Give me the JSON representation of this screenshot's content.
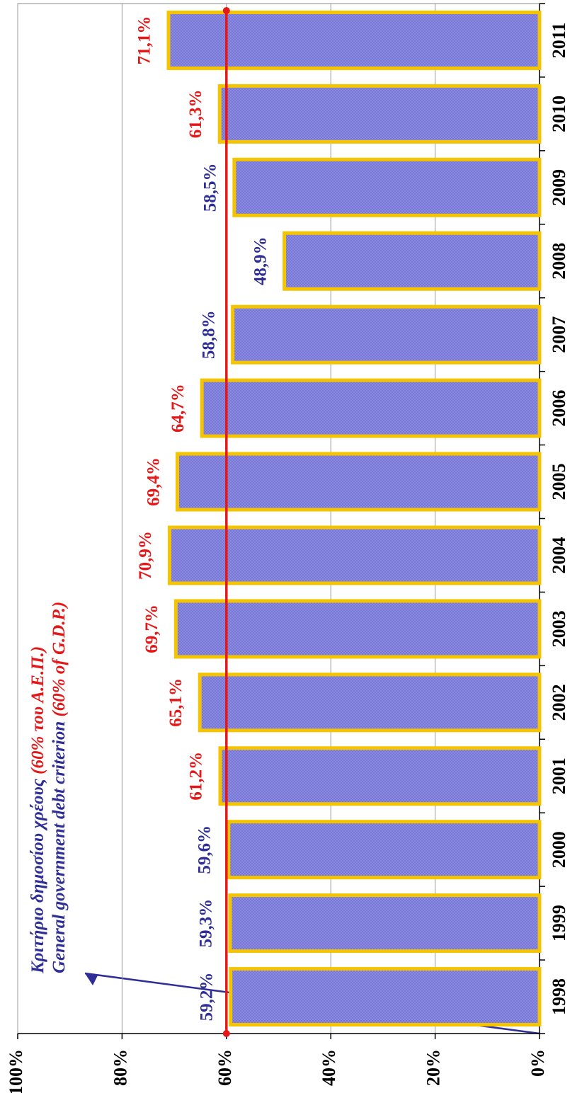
{
  "chart_data": {
    "type": "bar",
    "categories": [
      "1998",
      "1999",
      "2000",
      "2001",
      "2002",
      "2003",
      "2004",
      "2005",
      "2006",
      "2007",
      "2008",
      "2009",
      "2010",
      "2011"
    ],
    "values": [
      59.2,
      59.3,
      59.6,
      61.2,
      65.1,
      69.7,
      70.9,
      69.4,
      64.7,
      58.8,
      48.9,
      58.5,
      61.3,
      71.1
    ],
    "value_labels": [
      "59,2%",
      "59,3%",
      "59,6%",
      "61,2%",
      "65,1%",
      "69,7%",
      "70,9%",
      "69,4%",
      "64,7%",
      "58,8%",
      "48,9%",
      "58,5%",
      "61,3%",
      "71,1%"
    ],
    "color": "#8e8ee6",
    "border_color": "#f5c400",
    "threshold": 60,
    "threshold_color": "#e41818",
    "label_color_below": "#2e2e96",
    "annotation": [
      [
        {
          "text": "Κριτήριο δημοσίου χρέους ",
          "color": "#2e2e96"
        },
        {
          "text": "(60% του Α.Ε.Π.)",
          "color": "#e41818"
        }
      ],
      [
        {
          "text": "General government debt criterion ",
          "color": "#2e2e96"
        },
        {
          "text": "(60% of G.D.P.)",
          "color": "#e41818"
        }
      ]
    ],
    "ylim": [
      0,
      100
    ],
    "yticks": [
      {
        "value": 0,
        "label": "0%"
      },
      {
        "value": 20,
        "label": "20%"
      },
      {
        "value": 40,
        "label": "40%"
      },
      {
        "value": 60,
        "label": "60%"
      },
      {
        "value": 80,
        "label": "80%"
      },
      {
        "value": 100,
        "label": "100%"
      }
    ],
    "grid": true,
    "rotated": true
  }
}
